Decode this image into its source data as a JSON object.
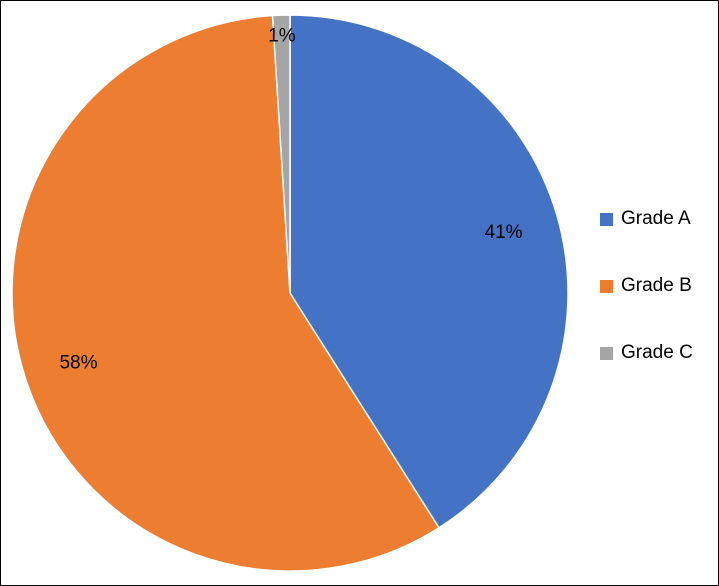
{
  "chart_data": {
    "type": "pie",
    "title": "",
    "categories": [
      "Grade A",
      "Grade B",
      "Grade C"
    ],
    "values": [
      41,
      58,
      1
    ],
    "labels": [
      "41%",
      "58%",
      "1%"
    ],
    "colors": [
      "#4472C4",
      "#ED7D31",
      "#A5A5A5"
    ],
    "legend_position": "right",
    "start_angle_deg": 0,
    "direction": "clockwise"
  }
}
